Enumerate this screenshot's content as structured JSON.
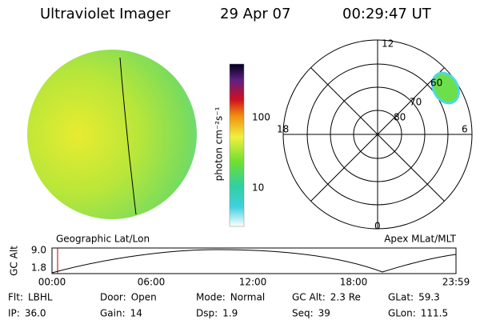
{
  "header": {
    "title": "Ultraviolet Imager",
    "date": "29 Apr 07",
    "time": "00:29:47 UT"
  },
  "image_panel": {
    "label": "Geographic Lat/Lon"
  },
  "colorbar": {
    "label": "photon cm⁻²s⁻¹",
    "ticks": [
      "100",
      "10"
    ]
  },
  "polar_panel": {
    "label": "Apex MLat/MLT",
    "mlt_labels": [
      "12",
      "18",
      "6",
      "0"
    ],
    "lat_labels": [
      "60",
      "70",
      "80"
    ]
  },
  "altitude_plot": {
    "y_label": "GC Alt",
    "y_ticks": [
      "9.0",
      "1.8"
    ],
    "x_ticks": [
      "00:00",
      "06:00",
      "12:00",
      "18:00",
      "23:59"
    ]
  },
  "status": [
    [
      {
        "label": "Flt:",
        "value": "LBHL"
      },
      {
        "label": "Door:",
        "value": "Open"
      },
      {
        "label": "Mode:",
        "value": "Normal"
      },
      {
        "label": "GC Alt:",
        "value": "2.3 Re"
      },
      {
        "label": "GLat:",
        "value": "59.3"
      }
    ],
    [
      {
        "label": "IP:",
        "value": "36.0"
      },
      {
        "label": "Gain:",
        "value": "14"
      },
      {
        "label": "Dsp:",
        "value": "1.9"
      },
      {
        "label": "Seq:",
        "value": "39"
      },
      {
        "label": "GLon:",
        "value": "111.5"
      }
    ]
  ]
}
